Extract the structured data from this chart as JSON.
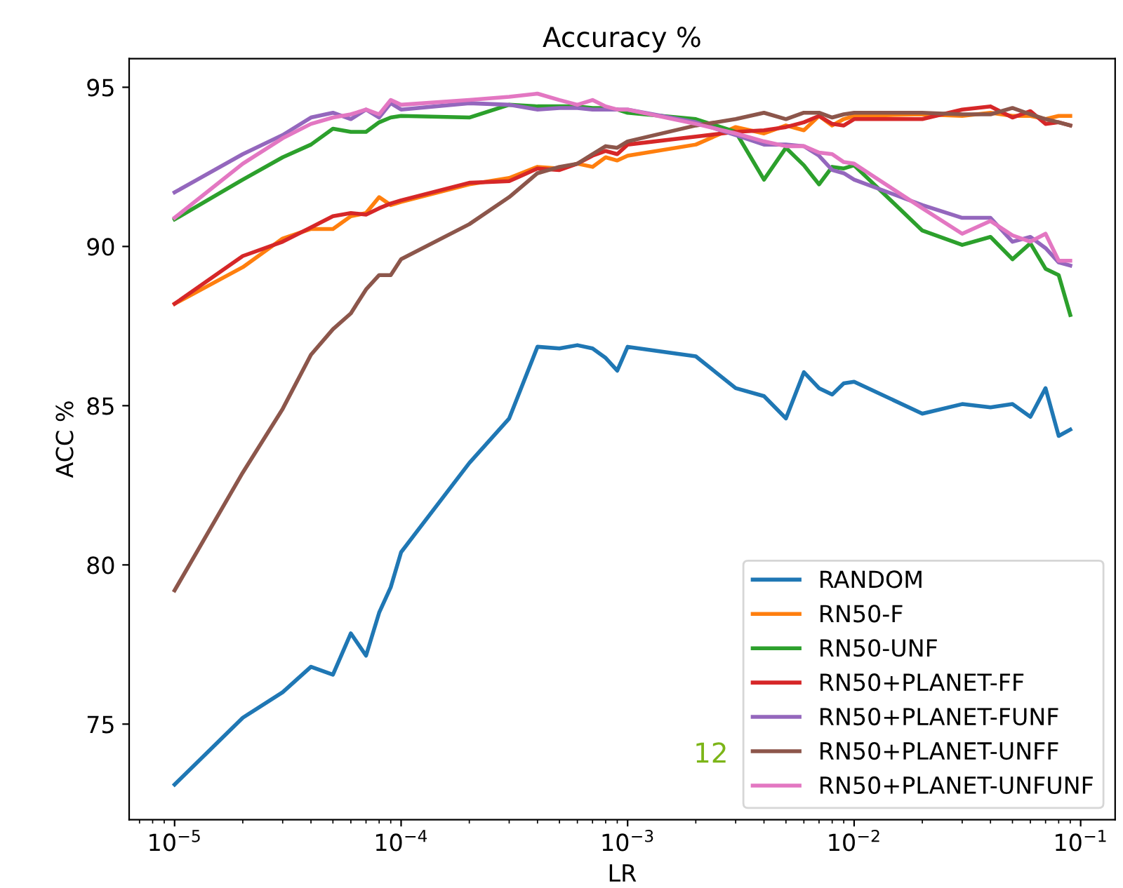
{
  "chart_data": {
    "type": "line",
    "title": "Accuracy %",
    "xlabel": "LR",
    "ylabel": "ACC %",
    "log": "x",
    "grid": false,
    "legend": "bottom right",
    "marker": "none",
    "line_style": "solid",
    "x": [
      1e-05,
      2e-05,
      3e-05,
      4e-05,
      5e-05,
      6e-05,
      7e-05,
      8e-05,
      9e-05,
      0.0001,
      0.0002,
      0.0003,
      0.0004,
      0.0005,
      0.0006,
      0.0007,
      0.0008,
      0.0009,
      0.001,
      0.002,
      0.003,
      0.004,
      0.005,
      0.006,
      0.007,
      0.008,
      0.009,
      0.01,
      0.02,
      0.03,
      0.04,
      0.05,
      0.06,
      0.07,
      0.08,
      0.09
    ],
    "xlim": [
      6.3e-06,
      0.142
    ],
    "ylim": [
      72.0,
      95.9
    ],
    "xticks": [
      {
        "value": 1e-05,
        "label": "10$^{−5}$"
      },
      {
        "value": 0.0001,
        "label": "10$^{−4}$"
      },
      {
        "value": 0.001,
        "label": "10$^{−3}$"
      },
      {
        "value": 0.01,
        "label": "10$^{−2}$"
      },
      {
        "value": 0.1,
        "label": "10$^{−1}$"
      }
    ],
    "yticks": [
      75,
      80,
      85,
      90,
      95
    ],
    "series": [
      {
        "name": "RANDOM",
        "color": "#1f77b4",
        "values": [
          73.1,
          75.2,
          76.0,
          76.8,
          76.55,
          77.85,
          77.15,
          78.5,
          79.3,
          80.4,
          83.2,
          84.6,
          86.85,
          86.8,
          86.9,
          86.8,
          86.5,
          86.1,
          86.85,
          86.55,
          85.55,
          85.3,
          84.6,
          86.05,
          85.55,
          85.35,
          85.7,
          85.75,
          84.75,
          85.05,
          84.95,
          85.05,
          84.65,
          85.55,
          84.05,
          84.25
        ]
      },
      {
        "name": "RN50-F",
        "color": "#ff7f0e",
        "values": [
          88.2,
          89.35,
          90.25,
          90.55,
          90.55,
          90.95,
          91.05,
          91.55,
          91.3,
          91.4,
          91.95,
          92.15,
          92.5,
          92.45,
          92.6,
          92.5,
          92.8,
          92.7,
          92.85,
          93.2,
          93.75,
          93.55,
          93.8,
          93.65,
          94.1,
          93.8,
          94.0,
          94.1,
          94.15,
          94.1,
          94.2,
          94.1,
          94.1,
          94.0,
          94.1,
          94.1
        ]
      },
      {
        "name": "RN50-UNF",
        "color": "#2ca02c",
        "values": [
          90.85,
          92.1,
          92.8,
          93.2,
          93.7,
          93.6,
          93.6,
          93.9,
          94.05,
          94.1,
          94.05,
          94.45,
          94.4,
          94.4,
          94.4,
          94.35,
          94.35,
          94.3,
          94.2,
          94.0,
          93.6,
          92.1,
          93.1,
          92.55,
          91.95,
          92.5,
          92.45,
          92.55,
          90.5,
          90.05,
          90.3,
          89.6,
          90.1,
          89.3,
          89.1,
          87.85
        ]
      },
      {
        "name": "RN50+PLANET-FF",
        "color": "#d62728",
        "values": [
          88.2,
          89.7,
          90.15,
          90.6,
          90.95,
          91.05,
          91.0,
          91.2,
          91.35,
          91.45,
          92.0,
          92.05,
          92.45,
          92.4,
          92.6,
          92.85,
          93.0,
          92.9,
          93.2,
          93.45,
          93.6,
          93.65,
          93.75,
          93.9,
          94.1,
          93.85,
          93.8,
          94.0,
          94.0,
          94.3,
          94.4,
          94.05,
          94.25,
          93.85,
          93.9,
          93.8
        ]
      },
      {
        "name": "RN50+PLANET-FUNF",
        "color": "#9467bd",
        "values": [
          91.7,
          92.9,
          93.5,
          94.05,
          94.2,
          94.0,
          94.3,
          94.05,
          94.5,
          94.3,
          94.5,
          94.45,
          94.3,
          94.35,
          94.35,
          94.3,
          94.3,
          94.3,
          94.3,
          93.9,
          93.5,
          93.2,
          93.2,
          93.15,
          92.85,
          92.4,
          92.3,
          92.1,
          91.3,
          90.9,
          90.9,
          90.15,
          90.3,
          89.95,
          89.5,
          89.4
        ]
      },
      {
        "name": "RN50+PLANET-UNFF",
        "color": "#8c564b",
        "values": [
          79.2,
          82.9,
          84.9,
          86.6,
          87.4,
          87.9,
          88.65,
          89.1,
          89.1,
          89.6,
          90.7,
          91.55,
          92.3,
          92.5,
          92.6,
          92.9,
          93.15,
          93.1,
          93.3,
          93.8,
          94.0,
          94.2,
          94.0,
          94.2,
          94.2,
          94.05,
          94.15,
          94.2,
          94.2,
          94.15,
          94.15,
          94.35,
          94.15,
          94.0,
          93.9,
          93.8
        ]
      },
      {
        "name": "RN50+PLANET-UNFUNF",
        "color": "#e377c2",
        "values": [
          90.9,
          92.6,
          93.4,
          93.85,
          94.05,
          94.15,
          94.3,
          94.15,
          94.6,
          94.45,
          94.6,
          94.7,
          94.8,
          94.6,
          94.45,
          94.6,
          94.4,
          94.3,
          94.3,
          93.85,
          93.55,
          93.3,
          93.15,
          93.15,
          92.95,
          92.9,
          92.65,
          92.6,
          91.2,
          90.4,
          90.8,
          90.35,
          90.15,
          90.4,
          89.55,
          89.55
        ]
      }
    ],
    "annotations": [
      "12"
    ]
  }
}
